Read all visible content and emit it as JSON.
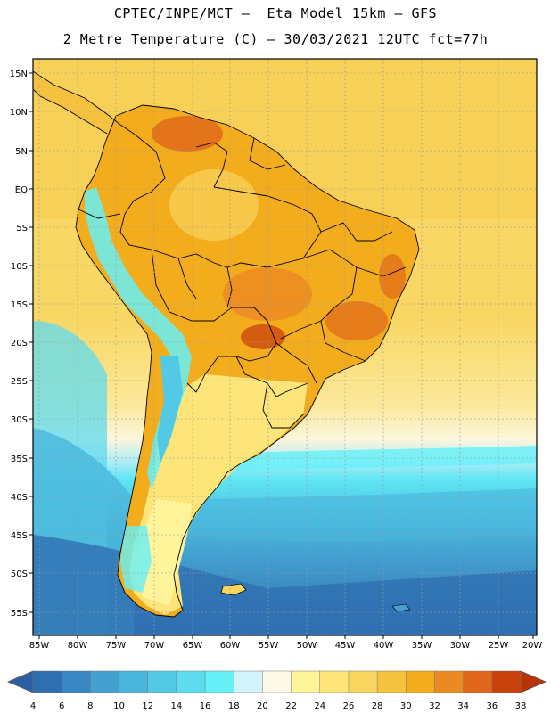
{
  "header": {
    "line1": "CPTEC/INPE/MCT –  Eta Model 15km – GFS",
    "line2": "2 Metre Temperature (C) – 30/03/2021 12UTC fct=77h"
  },
  "map": {
    "lat_labels": [
      "15N",
      "10N",
      "5N",
      "EQ",
      "5S",
      "10S",
      "15S",
      "20S",
      "25S",
      "30S",
      "35S",
      "40S",
      "45S",
      "50S",
      "55S"
    ],
    "lon_labels": [
      "85W",
      "80W",
      "75W",
      "70W",
      "65W",
      "60W",
      "55W",
      "50W",
      "45W",
      "40W",
      "35W",
      "30W",
      "25W",
      "20W"
    ]
  },
  "colorbar": {
    "labels": [
      "4",
      "6",
      "8",
      "10",
      "12",
      "14",
      "16",
      "18",
      "20",
      "22",
      "24",
      "26",
      "28",
      "30",
      "32",
      "34",
      "36",
      "38"
    ],
    "colors": [
      "#2f6fb1",
      "#3a86c3",
      "#43a0cf",
      "#4ab6dc",
      "#52c9e5",
      "#5edbef",
      "#66f0f7",
      "#d2f3fb",
      "#fdf9e6",
      "#fff49a",
      "#fde57a",
      "#f9d45e",
      "#f4c23e",
      "#f3ac1b",
      "#eb8a23",
      "#e0661a",
      "#c9420e"
    ],
    "low_color": "#2a5fa3",
    "high_color": "#b83208"
  }
}
